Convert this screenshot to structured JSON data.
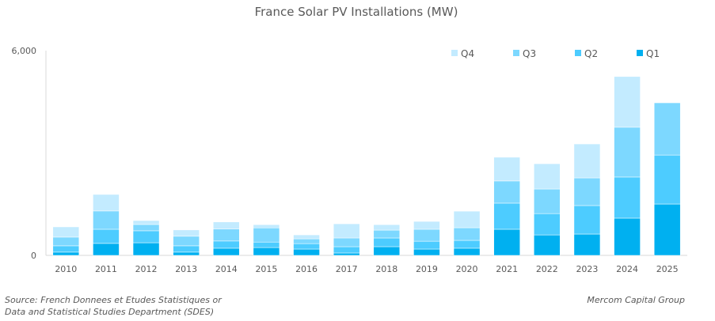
{
  "chart_data": {
    "type": "bar",
    "stacked": true,
    "title": "France Solar PV Installations (MW)",
    "xlabel": "",
    "ylabel": "",
    "ylim": [
      0,
      6000
    ],
    "y_ticks": [
      {
        "value": 0,
        "label": "0"
      },
      {
        "value": 6000,
        "label": "6,000"
      }
    ],
    "grid": false,
    "legend_position": "top-right",
    "categories": [
      "2010",
      "2011",
      "2012",
      "2013",
      "2014",
      "2015",
      "2016",
      "2017",
      "2018",
      "2019",
      "2020",
      "2021",
      "2022",
      "2023",
      "2024",
      "2025"
    ],
    "series": [
      {
        "name": "Q1",
        "color": "#00B0F0",
        "values": [
          95,
          350,
          370,
          95,
          210,
          230,
          185,
          70,
          255,
          185,
          210,
          765,
          600,
          625,
          1090,
          1505
        ]
      },
      {
        "name": "Q2",
        "color": "#4DCCFF",
        "values": [
          185,
          415,
          350,
          185,
          210,
          160,
          160,
          185,
          255,
          230,
          230,
          765,
          625,
          835,
          1205,
          1435
        ]
      },
      {
        "name": "Q3",
        "color": "#7DD8FF",
        "values": [
          255,
          535,
          185,
          280,
          350,
          415,
          140,
          255,
          230,
          350,
          370,
          650,
          720,
          810,
          1460,
          1530
        ]
      },
      {
        "name": "Q4",
        "color": "#C3EBFF",
        "values": [
          300,
          485,
          115,
          185,
          210,
          95,
          115,
          415,
          160,
          230,
          485,
          695,
          740,
          995,
          1485,
          0
        ]
      }
    ],
    "legend_order": [
      "Q4",
      "Q3",
      "Q2",
      "Q1"
    ]
  },
  "footer": {
    "source_line1": "Source: French Donnees et Etudes Statistiques or",
    "source_line2": "Data and Statistical Studies Department (SDES)",
    "credit": "Mercom Capital Group"
  }
}
